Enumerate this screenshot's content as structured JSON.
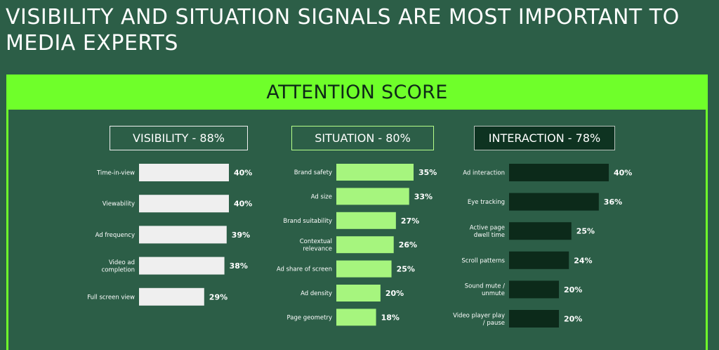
{
  "title": "VISIBILITY AND SITUATION SIGNALS ARE MOST IMPORTANT TO MEDIA EXPERTS",
  "banner": "ATTENTION SCORE",
  "colors": {
    "background": "#2c5e47",
    "accent": "#6fff2a",
    "visibility_bar": "#efefef",
    "situation_bar": "#a6f57e",
    "interaction_bar": "#0c2a1a"
  },
  "chart_data": [
    {
      "type": "bar",
      "orientation": "horizontal",
      "title": "VISIBILITY - 88%",
      "categories": [
        "Time-in-view",
        "Viewability",
        "Ad frequency",
        "Video ad completion",
        "Full screen view"
      ],
      "values": [
        40,
        40,
        39,
        38,
        29
      ],
      "value_labels": [
        "40%",
        "40%",
        "39%",
        "38%",
        "29%"
      ],
      "unit": "%",
      "xlim": [
        0,
        40
      ]
    },
    {
      "type": "bar",
      "orientation": "horizontal",
      "title": "SITUATION - 80%",
      "categories": [
        "Brand safety",
        "Ad size",
        "Brand suitability",
        "Contextual relevance",
        "Ad share of screen",
        "Ad density",
        "Page geometry"
      ],
      "values": [
        35,
        33,
        27,
        26,
        25,
        20,
        18
      ],
      "value_labels": [
        "35%",
        "33%",
        "27%",
        "26%",
        "25%",
        "20%",
        "18%"
      ],
      "unit": "%",
      "xlim": [
        0,
        40
      ]
    },
    {
      "type": "bar",
      "orientation": "horizontal",
      "title": "INTERACTION - 78%",
      "categories": [
        "Ad interaction",
        "Eye tracking",
        "Active page dwell time",
        "Scroll patterns",
        "Sound mute / unmute",
        "Video player play / pause"
      ],
      "values": [
        40,
        36,
        25,
        24,
        20,
        20
      ],
      "value_labels": [
        "40%",
        "36%",
        "25%",
        "24%",
        "20%",
        "20%"
      ],
      "unit": "%",
      "xlim": [
        0,
        40
      ]
    }
  ]
}
